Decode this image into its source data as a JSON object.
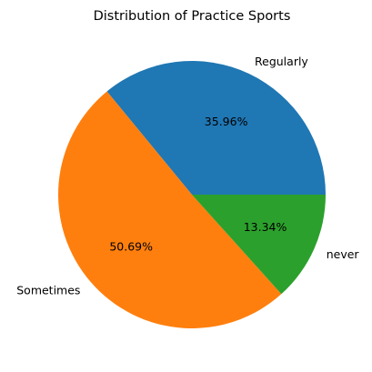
{
  "chart_data": {
    "type": "pie",
    "title": "Distribution of Practice Sports",
    "labels": [
      "Regularly",
      "Sometimes",
      "never"
    ],
    "values": [
      35.96,
      50.69,
      13.34
    ],
    "percent_labels": [
      "35.96%",
      "50.69%",
      "13.34%"
    ],
    "colors": [
      "#1f77b4",
      "#ff7f0e",
      "#2ca02c"
    ],
    "start_angle_deg": 0,
    "direction": "counterclockwise"
  }
}
